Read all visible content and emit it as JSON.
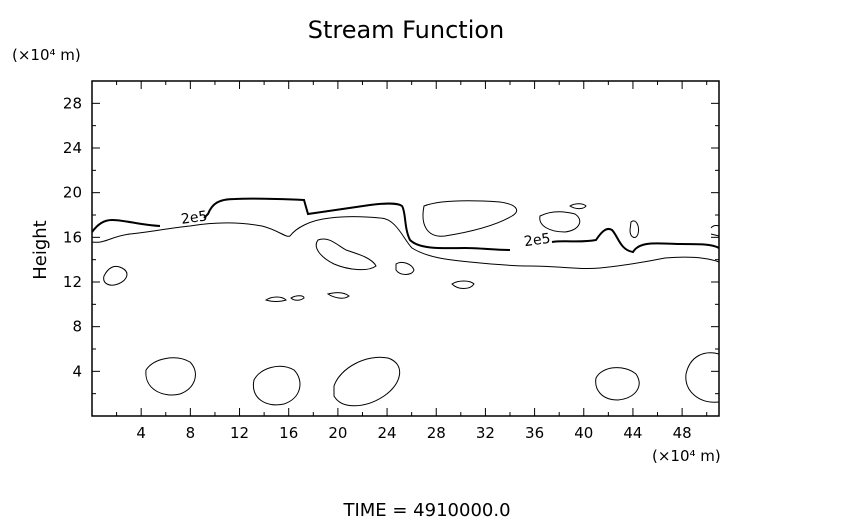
{
  "chart_data": {
    "type": "contour",
    "title": "Stream Function",
    "ylabel": "Height",
    "y_unit": "(×10⁴ m)",
    "x_unit": "(×10⁴ m)",
    "xlim": [
      0,
      51
    ],
    "ylim": [
      0,
      30
    ],
    "x_ticks": [
      4,
      8,
      12,
      16,
      20,
      24,
      28,
      32,
      36,
      40,
      44,
      48
    ],
    "y_ticks": [
      4,
      8,
      12,
      16,
      20,
      24,
      28
    ],
    "contour_labels": [
      {
        "text": "2e5",
        "x": 7.3,
        "y": 17.2
      },
      {
        "text": "2e5",
        "x": 35.2,
        "y": 15.2
      }
    ],
    "footer": "TIME  =  4910000.0"
  }
}
